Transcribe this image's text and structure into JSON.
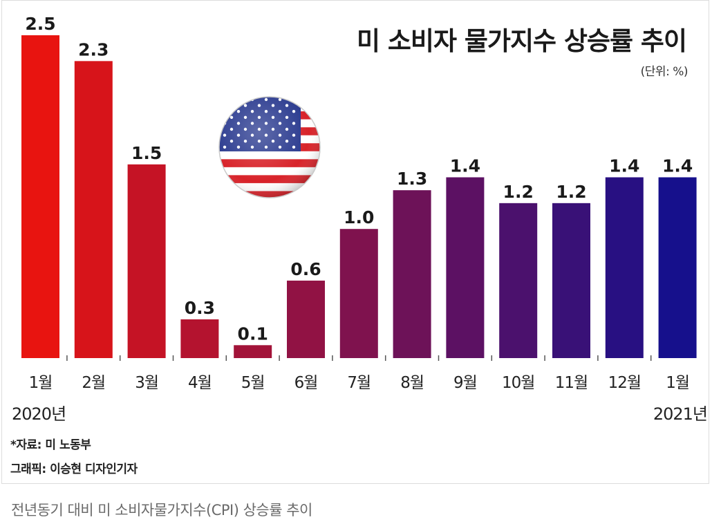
{
  "chart_data": {
    "type": "bar",
    "title": "미 소비자 물가지수 상승률 추이",
    "unit_label": "(단위: %)",
    "categories": [
      "1월",
      "2월",
      "3월",
      "4월",
      "5월",
      "6월",
      "7월",
      "8월",
      "9월",
      "10월",
      "11월",
      "12월",
      "1월"
    ],
    "values": [
      2.5,
      2.3,
      1.5,
      0.3,
      0.1,
      0.6,
      1.0,
      1.3,
      1.4,
      1.2,
      1.2,
      1.4,
      1.4
    ],
    "value_labels": [
      "2.5",
      "2.3",
      "1.5",
      "0.3",
      "0.1",
      "0.6",
      "1.0",
      "1.3",
      "1.4",
      "1.2",
      "1.2",
      "1.4",
      "1.4"
    ],
    "xlabel": "",
    "ylabel": "",
    "ylim": [
      0,
      2.5
    ],
    "grid": false,
    "gradient_start_color": "#e81410",
    "gradient_end_color": "#16108c",
    "year_start_label": "2020년",
    "year_end_label": "2021년",
    "source": "*자료: 미 노동부",
    "credit": "그래픽: 이승현 디자인기자"
  },
  "caption": "전년동기 대비 미 소비자물가지수(CPI) 상승률 추이",
  "flag_icon": "us-flag-icon"
}
